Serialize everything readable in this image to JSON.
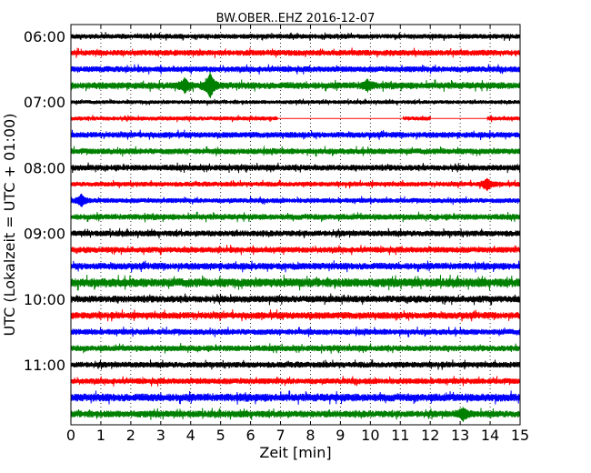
{
  "chart_data": {
    "type": "line",
    "title": "BW.OBER..EHZ 2016-12-07",
    "xlabel": "Zeit  [min]",
    "ylabel": "UTC (Lokalzeit = UTC + 01:00)",
    "xlim": [
      0,
      15
    ],
    "x_ticks": [
      "0",
      "1",
      "2",
      "3",
      "4",
      "5",
      "6",
      "7",
      "8",
      "9",
      "10",
      "11",
      "12",
      "13",
      "14",
      "15"
    ],
    "y_tick_labels": [
      "06:00",
      "07:00",
      "08:00",
      "09:00",
      "10:00",
      "11:00"
    ],
    "grid": "vertical dotted at each minute",
    "row_start": "06:00",
    "row_interval_min": 15,
    "color_cycle": [
      "#000000",
      "#ff0000",
      "#0000ff",
      "#008000"
    ],
    "traces": [
      {
        "start": "06:00",
        "color": "black",
        "amplitude": 0.25
      },
      {
        "start": "06:15",
        "color": "red",
        "amplitude": 0.3
      },
      {
        "start": "06:30",
        "color": "blue",
        "amplitude": 0.3
      },
      {
        "start": "06:45",
        "color": "green",
        "amplitude": 0.35,
        "events": [
          {
            "t": 3.8,
            "amp": 0.7
          },
          {
            "t": 4.65,
            "amp": 1.3
          },
          {
            "t": 9.9,
            "amp": 0.5
          }
        ]
      },
      {
        "start": "07:00",
        "color": "black",
        "amplitude": 0.2
      },
      {
        "start": "07:15",
        "color": "red",
        "amplitude": 0.22,
        "gaps": [
          [
            6.9,
            11.1
          ],
          [
            12.0,
            13.9
          ]
        ]
      },
      {
        "start": "07:30",
        "color": "blue",
        "amplitude": 0.3
      },
      {
        "start": "07:45",
        "color": "green",
        "amplitude": 0.3
      },
      {
        "start": "08:00",
        "color": "black",
        "amplitude": 0.3
      },
      {
        "start": "08:15",
        "color": "red",
        "amplitude": 0.25,
        "events": [
          {
            "t": 13.9,
            "amp": 0.6
          }
        ]
      },
      {
        "start": "08:30",
        "color": "blue",
        "amplitude": 0.25,
        "events": [
          {
            "t": 0.35,
            "amp": 0.6
          }
        ]
      },
      {
        "start": "08:45",
        "color": "green",
        "amplitude": 0.3
      },
      {
        "start": "09:00",
        "color": "black",
        "amplitude": 0.3
      },
      {
        "start": "09:15",
        "color": "red",
        "amplitude": 0.3
      },
      {
        "start": "09:30",
        "color": "blue",
        "amplitude": 0.35
      },
      {
        "start": "09:45",
        "color": "green",
        "amplitude": 0.45
      },
      {
        "start": "10:00",
        "color": "black",
        "amplitude": 0.35
      },
      {
        "start": "10:15",
        "color": "red",
        "amplitude": 0.35
      },
      {
        "start": "10:30",
        "color": "blue",
        "amplitude": 0.3
      },
      {
        "start": "10:45",
        "color": "green",
        "amplitude": 0.3
      },
      {
        "start": "11:00",
        "color": "black",
        "amplitude": 0.3
      },
      {
        "start": "11:15",
        "color": "red",
        "amplitude": 0.3
      },
      {
        "start": "11:30",
        "color": "blue",
        "amplitude": 0.4
      },
      {
        "start": "11:45",
        "color": "green",
        "amplitude": 0.35,
        "events": [
          {
            "t": 13.1,
            "amp": 0.6
          }
        ]
      }
    ]
  }
}
